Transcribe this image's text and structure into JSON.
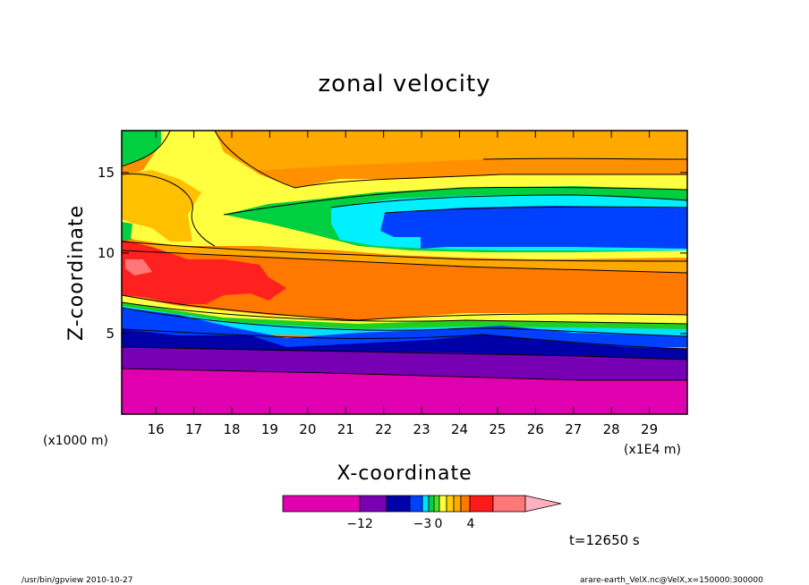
{
  "chart_data": {
    "type": "contour",
    "title": "zonal velocity",
    "xlabel": "X-coordinate",
    "ylabel": "Z-coordinate",
    "x_unit_left": "(x1000 m)",
    "x_unit_right": "(x1E4 m)",
    "xlim": [
      15.1,
      30.0
    ],
    "ylim": [
      0.0,
      17.6
    ],
    "xticks": [
      "16",
      "17",
      "18",
      "19",
      "20",
      "21",
      "22",
      "23",
      "24",
      "25",
      "26",
      "27",
      "28",
      "29"
    ],
    "yticks": [
      "5",
      "10",
      "15"
    ],
    "time_label": "t=12650 s",
    "colorbar": {
      "tick_labels": [
        "−12",
        "−3",
        "0",
        "4"
      ],
      "colors": [
        "#e000b0",
        "#7a00b4",
        "#0000a8",
        "#0040ff",
        "#00e0ff",
        "#00d050",
        "#50e020",
        "#ffff40",
        "#ffd000",
        "#ffaa00",
        "#ff7800",
        "#ff1a1a",
        "#ff7878",
        "#ffb0c0"
      ]
    },
    "bands": [
      {
        "color": "#e000b0",
        "z_top_west": 3.0,
        "z_top_east": 2.2
      },
      {
        "color": "#7a00b4",
        "z_top_west": 4.3,
        "z_top_east": 3.5
      },
      {
        "color": "#0000a8",
        "z_top_west": 5.2,
        "z_top_east": 4.5
      },
      {
        "color": "#0040ff",
        "z_top_west": 6.2,
        "z_top_east": 5.2
      },
      {
        "color": "#00e0ff",
        "z_top_west": 6.5,
        "z_top_east": 5.5
      },
      {
        "color": "#00d050",
        "z_top_west": 6.8,
        "z_top_east": 5.8
      },
      {
        "color": "#ffff40",
        "z_top_west": 7.2,
        "z_top_east": 6.2
      },
      {
        "color": "#ff7800",
        "z_top_west": 9.5,
        "z_top_east": 9.3
      },
      {
        "color": "#ffd000",
        "z_top_west": 10.5,
        "z_top_east": 10.0
      },
      {
        "color": "#0000ff",
        "z_top_west": 12.5,
        "z_top_east": 13.0
      },
      {
        "color": "#ffaa00",
        "z_top_west": 17.6,
        "z_top_east": 17.6
      }
    ]
  },
  "footer": {
    "left": "/usr/bin/gpview   2010-10-27",
    "right": "arare-earth_VelX.nc@VelX,x=150000:300000"
  }
}
